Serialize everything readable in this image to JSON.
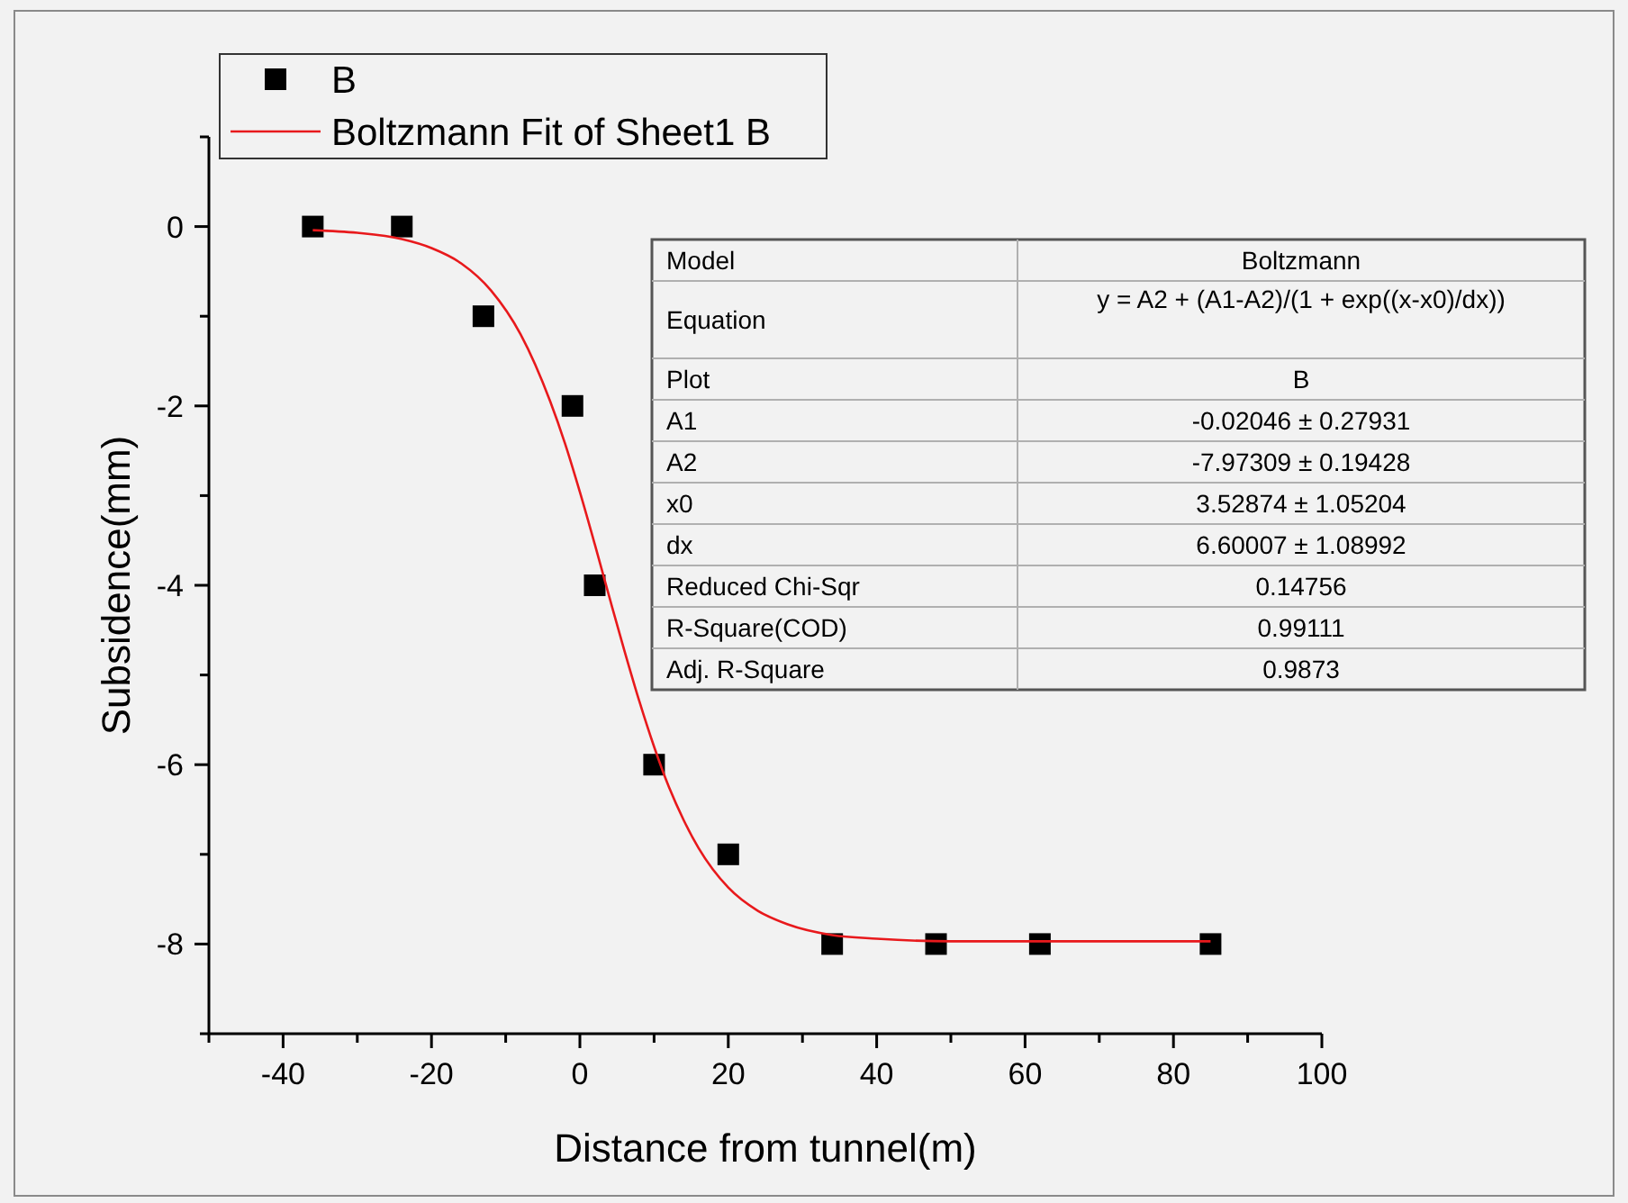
{
  "chart_data": {
    "type": "scatter",
    "xlabel": "Distance from tunnel(m)",
    "ylabel": "Subsidence(mm)",
    "xlim": [
      -50,
      100
    ],
    "xticks": [
      {
        "value": -50,
        "label": null
      },
      -40,
      {
        "value": -30,
        "label": null
      },
      -20,
      {
        "value": -10,
        "label": null
      },
      0,
      {
        "value": 10,
        "label": null
      },
      20,
      {
        "value": 30,
        "label": null
      },
      40,
      {
        "value": 50,
        "label": null
      },
      60,
      {
        "value": 70,
        "label": null
      },
      80,
      {
        "value": 90,
        "label": null
      },
      100
    ],
    "ylim": [
      -9,
      1
    ],
    "yticks": [
      {
        "value": -9,
        "label": null
      },
      -8,
      {
        "value": -7,
        "label": null
      },
      -6,
      {
        "value": -5,
        "label": null
      },
      -4,
      {
        "value": -3,
        "label": null
      },
      -2,
      {
        "value": -1,
        "label": null
      },
      0,
      {
        "value": 1,
        "label": null
      }
    ],
    "grid": false,
    "legend": "top left",
    "series": [
      {
        "name": "B",
        "marker": "square",
        "color": "#000000",
        "x": [
          -36,
          -24,
          -13,
          -1,
          2,
          10,
          20,
          34,
          48,
          62,
          85
        ],
        "values": [
          0,
          0,
          -1,
          -2,
          -4,
          -6,
          -7,
          -8,
          -8,
          -8,
          -8
        ]
      },
      {
        "name": "Boltzmann Fit of Sheet1 B",
        "type": "line",
        "marker": "none",
        "line_style": "solid",
        "color": "#e8191c",
        "x": [
          -36,
          -30,
          -24,
          -20,
          -16,
          -12,
          -8,
          -4,
          -2,
          0,
          2,
          4,
          6,
          8,
          10,
          12,
          14,
          16,
          20,
          24,
          28,
          34,
          40,
          50,
          60,
          70,
          85
        ],
        "values": [
          -0.04,
          -0.07,
          -0.14,
          -0.24,
          -0.41,
          -0.71,
          -1.2,
          -1.95,
          -2.42,
          -2.96,
          -3.54,
          -4.14,
          -4.73,
          -5.29,
          -5.8,
          -6.25,
          -6.62,
          -6.93,
          -7.37,
          -7.63,
          -7.78,
          -7.9,
          -7.94,
          -7.97,
          -7.97,
          -7.97,
          -7.97
        ]
      }
    ],
    "annotations": [
      "Model",
      "Boltzmann",
      "Equation",
      "y = A2 + (A1-A2)/(1 + exp((x-x0)/dx))",
      "Plot",
      "B",
      "A1",
      "-0.02046 ± 0.27931",
      "A2",
      "-7.97309 ± 0.19428",
      "x0",
      "3.52874 ± 1.05204",
      "dx",
      "6.60007 ± 1.08992",
      "Reduced Chi-Sqr",
      "0.14756",
      "R-Square(COD)",
      "0.99111",
      "Adj. R-Square",
      "0.9873"
    ]
  }
}
